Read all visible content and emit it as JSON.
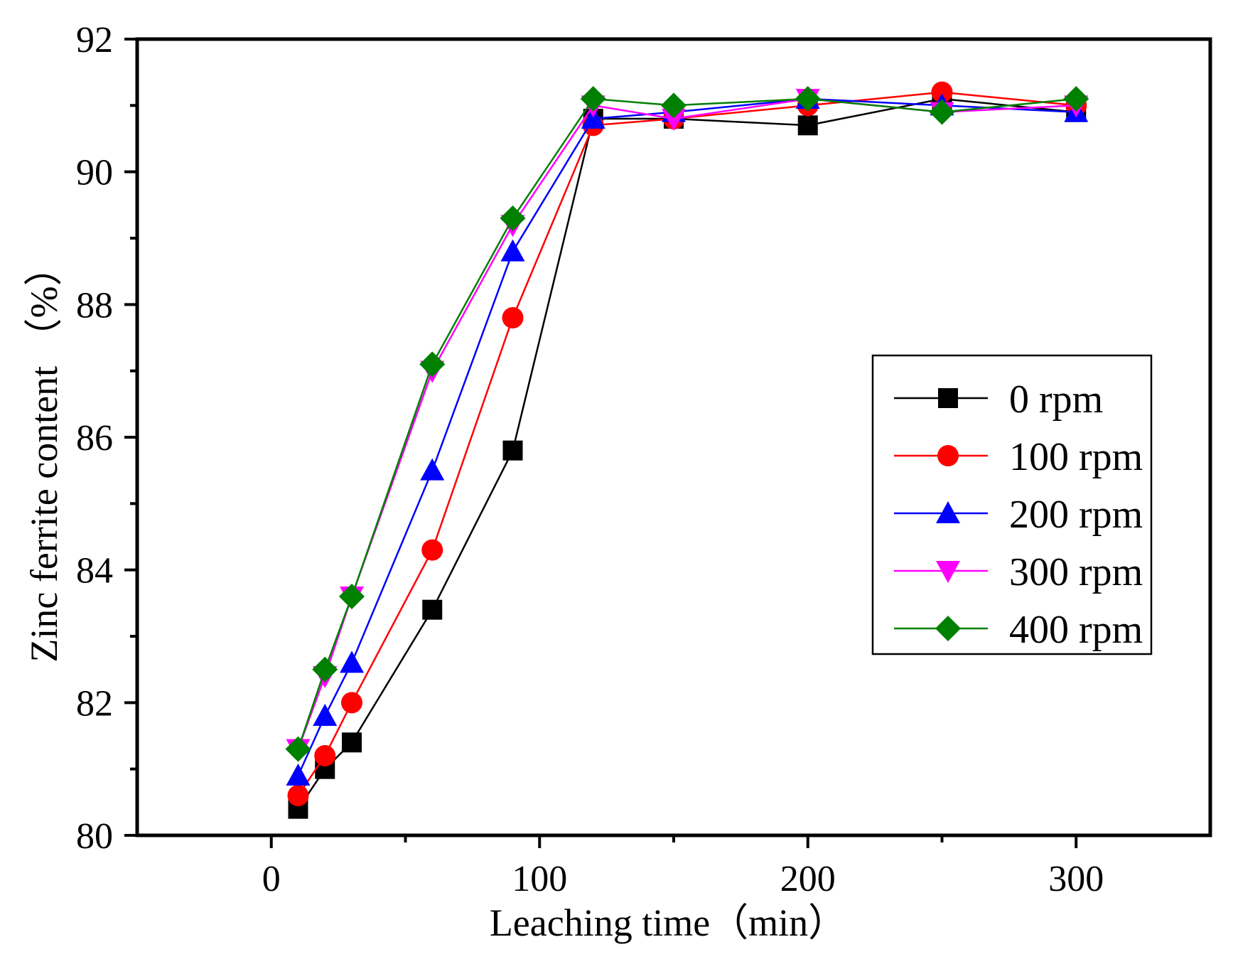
{
  "chart_data": {
    "type": "line",
    "title": "",
    "xlabel": "Leaching time（min）",
    "ylabel": "Zinc ferrite content （%）",
    "xlim": [
      -50,
      350
    ],
    "ylim": [
      80,
      92
    ],
    "xticks": [
      0,
      100,
      200,
      300
    ],
    "xtick_labels": [
      "0",
      "100",
      "200",
      "300"
    ],
    "yticks": [
      80,
      82,
      84,
      86,
      88,
      90,
      92
    ],
    "ytick_labels": [
      "80",
      "82",
      "84",
      "86",
      "88",
      "90",
      "92"
    ],
    "grid": false,
    "legend_position": "middle-right",
    "x": [
      10,
      20,
      30,
      60,
      90,
      120,
      150,
      200,
      250,
      300
    ],
    "series": [
      {
        "name": "0 rpm",
        "color": "#000000",
        "marker": "square",
        "values": [
          80.4,
          81.0,
          81.4,
          83.4,
          85.8,
          90.8,
          90.8,
          90.7,
          91.1,
          90.9
        ]
      },
      {
        "name": "100 rpm",
        "color": "#ff0000",
        "marker": "circle",
        "values": [
          80.6,
          81.2,
          82.0,
          84.3,
          87.8,
          90.7,
          90.8,
          91.0,
          91.2,
          91.0
        ]
      },
      {
        "name": "200 rpm",
        "color": "#0000ff",
        "marker": "triangle-up",
        "values": [
          80.9,
          81.8,
          82.6,
          85.5,
          88.8,
          90.8,
          90.9,
          91.1,
          91.0,
          90.9
        ]
      },
      {
        "name": "300 rpm",
        "color": "#ff00ff",
        "marker": "triangle-down",
        "values": [
          81.3,
          82.4,
          83.6,
          87.0,
          89.2,
          91.0,
          90.8,
          91.1,
          90.9,
          91.0
        ]
      },
      {
        "name": "400 rpm",
        "color": "#008000",
        "marker": "diamond",
        "values": [
          81.3,
          82.5,
          83.6,
          87.1,
          89.3,
          91.1,
          91.0,
          91.1,
          90.9,
          91.1
        ]
      }
    ]
  }
}
